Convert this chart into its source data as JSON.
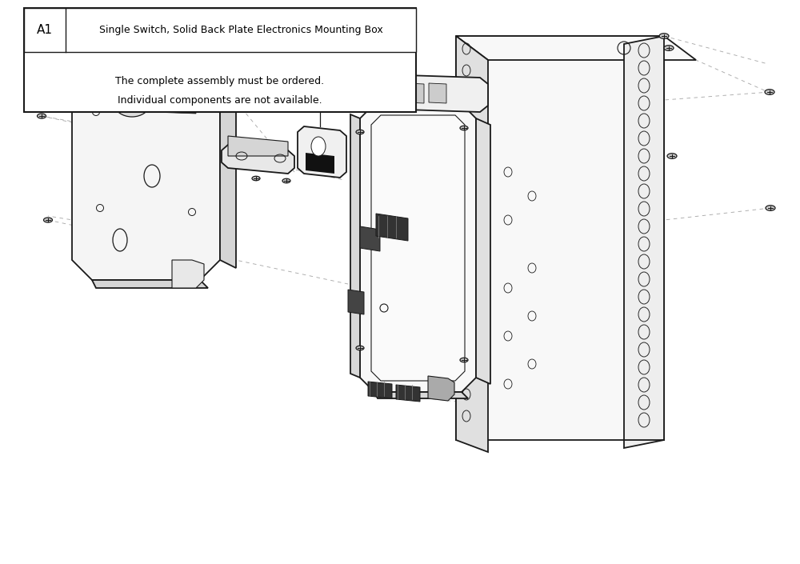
{
  "bg_color": "#ffffff",
  "line_color": "#1a1a1a",
  "table_label": "A1",
  "table_title": "Single Switch, Solid Back Plate Electronics Mounting Box",
  "table_note_line1": "The complete assembly must be ordered.",
  "table_note_line2": "Individual components are not available."
}
